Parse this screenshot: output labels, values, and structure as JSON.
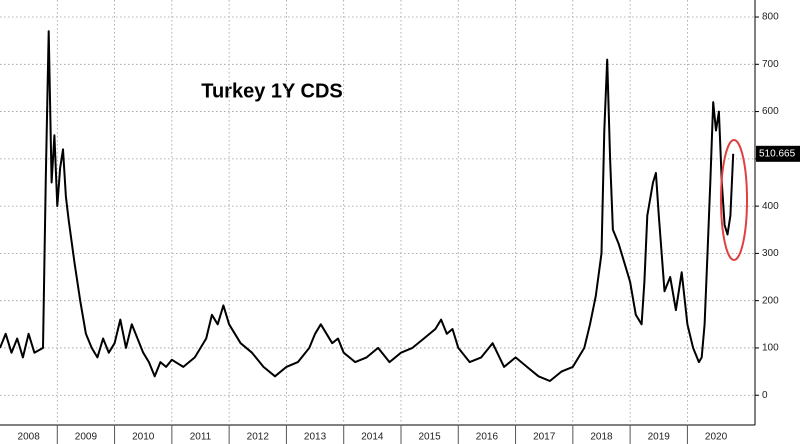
{
  "chart_data": {
    "type": "line",
    "title": "Turkey 1Y CDS",
    "x": [
      2008.0,
      2008.1,
      2008.2,
      2008.3,
      2008.4,
      2008.5,
      2008.6,
      2008.75,
      2008.8,
      2008.85,
      2008.9,
      2008.95,
      2009.0,
      2009.05,
      2009.1,
      2009.15,
      2009.2,
      2009.3,
      2009.4,
      2009.5,
      2009.6,
      2009.7,
      2009.8,
      2009.9,
      2010.0,
      2010.1,
      2010.2,
      2010.3,
      2010.4,
      2010.5,
      2010.6,
      2010.7,
      2010.8,
      2010.9,
      2011.0,
      2011.2,
      2011.4,
      2011.6,
      2011.7,
      2011.8,
      2011.9,
      2012.0,
      2012.2,
      2012.4,
      2012.6,
      2012.8,
      2013.0,
      2013.2,
      2013.4,
      2013.5,
      2013.6,
      2013.8,
      2013.9,
      2014.0,
      2014.2,
      2014.4,
      2014.6,
      2014.8,
      2015.0,
      2015.2,
      2015.4,
      2015.6,
      2015.7,
      2015.8,
      2015.9,
      2016.0,
      2016.2,
      2016.4,
      2016.6,
      2016.8,
      2017.0,
      2017.2,
      2017.4,
      2017.6,
      2017.8,
      2018.0,
      2018.2,
      2018.3,
      2018.4,
      2018.5,
      2018.55,
      2018.6,
      2018.65,
      2018.7,
      2018.8,
      2018.9,
      2019.0,
      2019.1,
      2019.2,
      2019.25,
      2019.3,
      2019.4,
      2019.45,
      2019.5,
      2019.6,
      2019.7,
      2019.8,
      2019.9,
      2020.0,
      2020.1,
      2020.2,
      2020.25,
      2020.3,
      2020.35,
      2020.4,
      2020.45,
      2020.5,
      2020.55,
      2020.6,
      2020.65,
      2020.7,
      2020.75,
      2020.8
    ],
    "values": [
      100,
      130,
      90,
      120,
      80,
      130,
      90,
      100,
      460,
      770,
      450,
      550,
      400,
      480,
      520,
      420,
      370,
      280,
      200,
      130,
      100,
      80,
      120,
      90,
      110,
      160,
      100,
      150,
      120,
      90,
      70,
      40,
      70,
      60,
      75,
      60,
      80,
      120,
      170,
      150,
      190,
      150,
      110,
      90,
      60,
      40,
      60,
      70,
      100,
      130,
      150,
      110,
      120,
      90,
      70,
      80,
      100,
      70,
      90,
      100,
      120,
      140,
      160,
      130,
      140,
      100,
      70,
      80,
      110,
      60,
      80,
      60,
      40,
      30,
      50,
      60,
      100,
      150,
      210,
      300,
      560,
      710,
      500,
      350,
      320,
      280,
      240,
      170,
      150,
      240,
      380,
      450,
      470,
      380,
      220,
      250,
      180,
      260,
      150,
      100,
      70,
      80,
      150,
      300,
      450,
      620,
      560,
      600,
      450,
      360,
      340,
      380,
      510.665
    ],
    "color": "#000000",
    "xlim": [
      2008,
      2021.18
    ],
    "xticks": [
      2008,
      2009,
      2010,
      2011,
      2012,
      2013,
      2014,
      2015,
      2016,
      2017,
      2018,
      2019,
      2020
    ],
    "ylim": [
      -63,
      836
    ],
    "yticks": [
      0,
      100,
      200,
      300,
      400,
      500,
      600,
      700,
      800
    ],
    "grid": true
  }
}
